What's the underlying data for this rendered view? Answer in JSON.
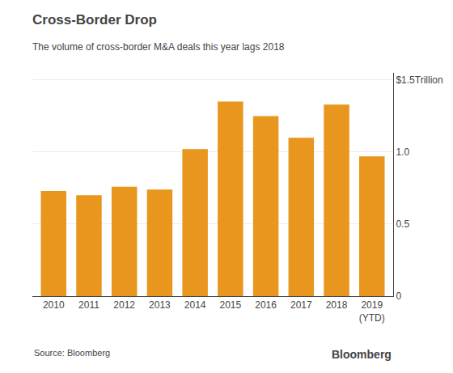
{
  "chart_data": {
    "type": "bar",
    "title": "Cross-Border Drop",
    "subtitle": "The volume of cross-border M&A deals this year lags 2018",
    "categories": [
      "2010",
      "2011",
      "2012",
      "2013",
      "2014",
      "2015",
      "2016",
      "2017",
      "2018",
      "2019\n(YTD)"
    ],
    "values": [
      0.73,
      0.7,
      0.76,
      0.74,
      1.02,
      1.35,
      1.25,
      1.1,
      1.33,
      0.97
    ],
    "color": "#E8961E",
    "ylim": [
      0,
      1.55
    ],
    "yticks": [
      0,
      0.5,
      {
        "value": 1.0,
        "label": "1.0"
      },
      {
        "value": 1.5,
        "label": "$1.5Trillion"
      }
    ],
    "grid": true,
    "annotations": [
      "Source: Bloomberg",
      "Bloomberg"
    ]
  }
}
